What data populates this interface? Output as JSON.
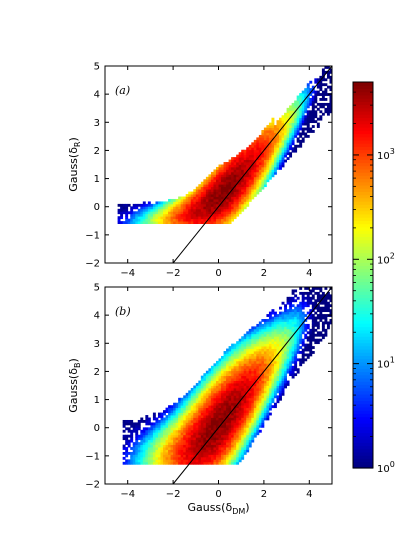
{
  "chart_data": [
    {
      "type": "heatmap",
      "panel_label": "(a)",
      "xlabel": "",
      "ylabel_main": "Gauss(δ",
      "ylabel_sub": "R",
      "ylabel_end": ")",
      "xlim": [
        -5,
        5
      ],
      "ylim": [
        -2,
        5
      ],
      "xticks": [
        -4,
        -2,
        0,
        2,
        4
      ],
      "yticks": [
        -2,
        -1,
        0,
        1,
        2,
        3,
        4,
        5
      ],
      "reference_line": {
        "x": [
          -2,
          5
        ],
        "y": [
          -2,
          5
        ]
      },
      "floor": -0.6,
      "x_min_density": -4.4
    },
    {
      "type": "heatmap",
      "panel_label": "(b)",
      "xlabel_main": "Gauss(δ",
      "xlabel_sub": "DM",
      "xlabel_end": ")",
      "ylabel_main": "Gauss(δ",
      "ylabel_sub": "B",
      "ylabel_end": ")",
      "xlim": [
        -5,
        5
      ],
      "ylim": [
        -2,
        5
      ],
      "xticks": [
        -4,
        -2,
        0,
        2,
        4
      ],
      "yticks": [
        -2,
        -1,
        0,
        1,
        2,
        3,
        4,
        5
      ],
      "reference_line": {
        "x": [
          -2,
          5
        ],
        "y": [
          -2,
          5
        ]
      },
      "floor": -1.25,
      "x_min_density": -4.2
    }
  ],
  "colorbar": {
    "scale": "log",
    "range": [
      1,
      5000
    ],
    "ticks": [
      {
        "base": "10",
        "exp": "0",
        "value": 1
      },
      {
        "base": "10",
        "exp": "1",
        "value": 10
      },
      {
        "base": "10",
        "exp": "2",
        "value": 100
      },
      {
        "base": "10",
        "exp": "3",
        "value": 1000
      }
    ],
    "colormap": "jet"
  }
}
